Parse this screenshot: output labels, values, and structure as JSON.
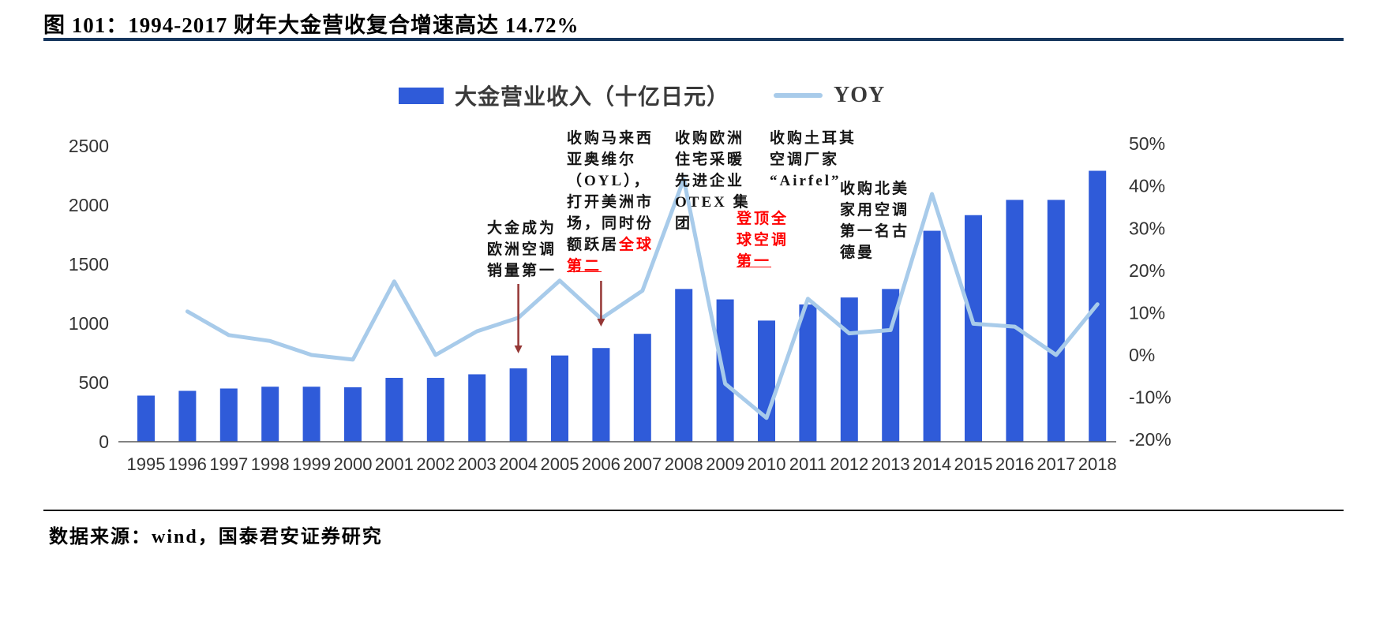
{
  "title": "图 101：1994-2017 财年大金营收复合增速高达 14.72%",
  "legend": {
    "bar_label": "大金营业收入（十亿日元）",
    "line_label": "YOY"
  },
  "source": "数据来源：wind，国泰君安证券研究",
  "colors": {
    "bar": "#2F5BD9",
    "line": "#A8CBEA",
    "arrow": "#953735",
    "annotation_red": "#FF0000",
    "axis_text": "#333333",
    "title_underline": "#17375E"
  },
  "chart_data": {
    "type": "bar",
    "title": "1994-2017 财年大金营收复合增速高达 14.72%",
    "categories": [
      "1995",
      "1996",
      "1997",
      "1998",
      "1999",
      "2000",
      "2001",
      "2002",
      "2003",
      "2004",
      "2005",
      "2006",
      "2007",
      "2008",
      "2009",
      "2010",
      "2011",
      "2012",
      "2013",
      "2014",
      "2015",
      "2016",
      "2017",
      "2018"
    ],
    "series": [
      {
        "name": "大金营业收入（十亿日元）",
        "type": "bar",
        "axis": "left",
        "values": [
          390,
          430,
          450,
          465,
          465,
          460,
          540,
          540,
          570,
          620,
          729,
          792,
          912,
          1291,
          1203,
          1024,
          1160,
          1219,
          1291,
          1783,
          1915,
          2044,
          2044,
          2290
        ]
      },
      {
        "name": "YOY",
        "type": "line",
        "axis": "right",
        "unit": "%",
        "values": [
          null,
          10.3,
          4.7,
          3.3,
          0,
          -1.1,
          17.4,
          0,
          5.6,
          8.8,
          17.6,
          8.6,
          15.2,
          41.6,
          -6.8,
          -14.9,
          13.3,
          5.1,
          5.9,
          38.1,
          7.4,
          6.7,
          0,
          12
        ]
      }
    ],
    "left_axis": {
      "ticks": [
        0,
        500,
        1000,
        1500,
        2000,
        2500
      ],
      "range": [
        0,
        2500
      ]
    },
    "right_axis": {
      "ticks": [
        {
          "label": "-20%",
          "value": -20
        },
        {
          "label": "-10%",
          "value": -10
        },
        {
          "label": "0%",
          "value": 0
        },
        {
          "label": "10%",
          "value": 10
        },
        {
          "label": "20%",
          "value": 20
        },
        {
          "label": "30%",
          "value": 30
        },
        {
          "label": "40%",
          "value": 40
        },
        {
          "label": "50%",
          "value": 50
        }
      ],
      "range": [
        -20,
        50
      ]
    },
    "grid": false,
    "legend_position": "top"
  },
  "annotations": [
    {
      "name": "annotation-europe-no1",
      "arrow_to_year": "2004",
      "lines": [
        [
          "大金成为"
        ],
        [
          "欧洲空调"
        ],
        [
          "销量第一"
        ]
      ]
    },
    {
      "name": "annotation-oyl",
      "arrow_to_year": "2006",
      "lines": [
        [
          "收购马来西"
        ],
        [
          "亚奥维尔"
        ],
        [
          "（OYL），"
        ],
        [
          "打开美洲市"
        ],
        [
          "场，同时份"
        ],
        [
          {
            "t": "额跃居"
          },
          {
            "t": "全球",
            "red": true
          }
        ],
        [
          {
            "t": "第二",
            "red": true,
            "underline": true
          }
        ]
      ]
    },
    {
      "name": "annotation-otex",
      "lines": [
        [
          "收购欧洲"
        ],
        [
          "住宅采暖"
        ],
        [
          "先进企业"
        ],
        [
          "OTEX 集"
        ],
        [
          "团"
        ]
      ]
    },
    {
      "name": "annotation-airfel",
      "lines": [
        [
          "收购土耳其"
        ],
        [
          "空调厂家"
        ],
        [
          "“Airfel”"
        ]
      ]
    },
    {
      "name": "annotation-global-no1",
      "lines": [
        [
          {
            "t": "登顶全",
            "red": true
          }
        ],
        [
          {
            "t": "球空调",
            "red": true
          }
        ],
        [
          {
            "t": "第一",
            "red": true,
            "underline": true
          }
        ]
      ]
    },
    {
      "name": "annotation-goodman",
      "lines": [
        [
          "收购北美"
        ],
        [
          "家用空调"
        ],
        [
          "第一名古"
        ],
        [
          "德曼"
        ]
      ]
    }
  ]
}
